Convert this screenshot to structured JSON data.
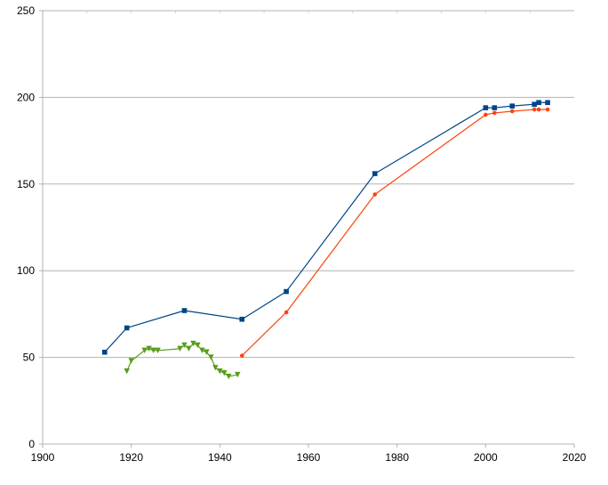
{
  "chart_data": {
    "type": "line",
    "title": "",
    "xlabel": "",
    "ylabel": "",
    "xlim": [
      1900,
      2020
    ],
    "ylim": [
      0,
      250
    ],
    "x_ticks": [
      1900,
      1920,
      1940,
      1960,
      1980,
      2000,
      2020
    ],
    "y_ticks": [
      0,
      50,
      100,
      150,
      200,
      250
    ],
    "grid": {
      "horizontal": true,
      "vertical": false
    },
    "legend": "none",
    "series": [
      {
        "color": "#004586",
        "marker": "square",
        "points": [
          [
            1914,
            53
          ],
          [
            1919,
            67
          ],
          [
            1932,
            77
          ],
          [
            1945,
            72
          ],
          [
            1955,
            88
          ],
          [
            1975,
            156
          ],
          [
            2000,
            194
          ],
          [
            2002,
            194
          ],
          [
            2006,
            195
          ],
          [
            2011,
            196
          ],
          [
            2012,
            197
          ],
          [
            2014,
            197
          ]
        ]
      },
      {
        "color": "#ff420e",
        "marker": "dot",
        "points": [
          [
            1945,
            51
          ],
          [
            1955,
            76
          ],
          [
            1975,
            144
          ],
          [
            2000,
            190
          ],
          [
            2002,
            191
          ],
          [
            2006,
            192
          ],
          [
            2011,
            193
          ],
          [
            2012,
            193
          ],
          [
            2014,
            193
          ]
        ]
      },
      {
        "color": "#579d1c",
        "marker": "triangle-down",
        "points": [
          [
            1919,
            42
          ],
          [
            1920,
            48
          ],
          [
            1923,
            54
          ],
          [
            1924,
            55
          ],
          [
            1925,
            54
          ],
          [
            1926,
            54
          ],
          [
            1931,
            55
          ],
          [
            1932,
            57
          ],
          [
            1933,
            55
          ],
          [
            1934,
            58
          ],
          [
            1935,
            57
          ],
          [
            1936,
            54
          ],
          [
            1937,
            53
          ],
          [
            1938,
            50
          ],
          [
            1939,
            44
          ],
          [
            1940,
            42
          ],
          [
            1941,
            41
          ],
          [
            1942,
            39
          ],
          [
            1944,
            40
          ]
        ]
      }
    ]
  }
}
